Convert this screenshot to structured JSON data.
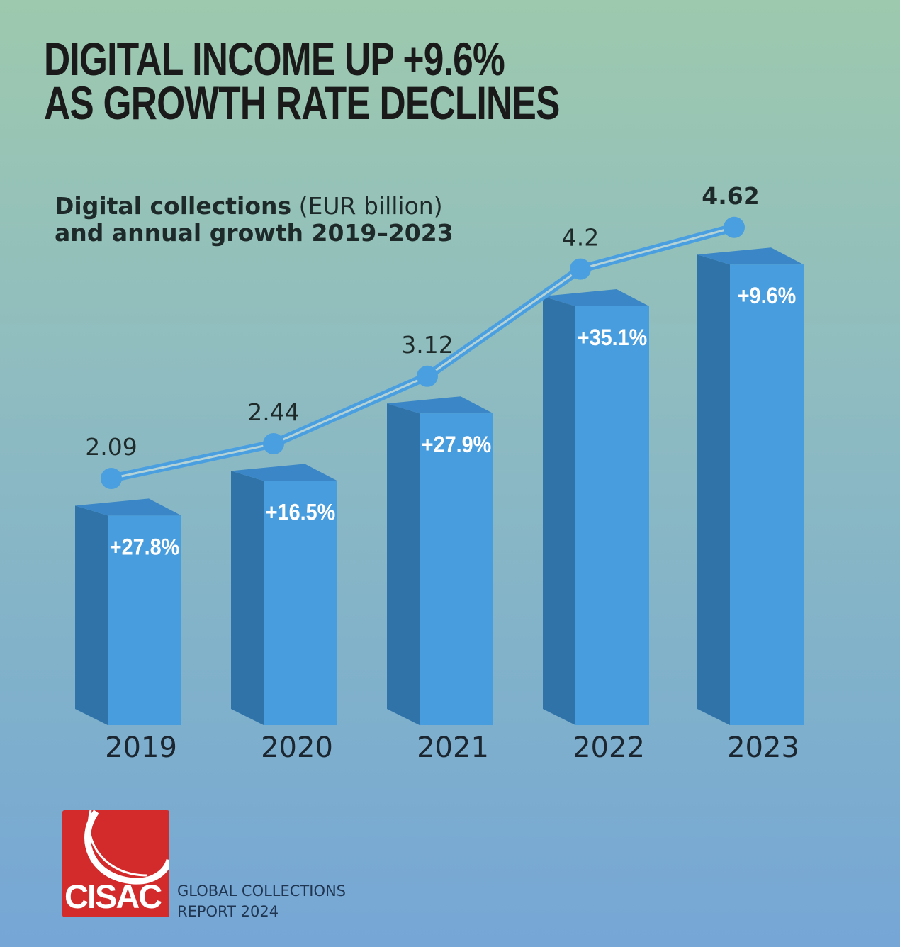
{
  "title": {
    "line1": "DIGITAL INCOME UP +9.6%",
    "line2": "AS GROWTH RATE DECLINES"
  },
  "subtitle": {
    "bold1": "Digital collections",
    "normal": " (EUR billion)",
    "bold2": "and annual growth 2019–2023"
  },
  "chart_data": {
    "type": "bar",
    "categories": [
      "2019",
      "2020",
      "2021",
      "2022",
      "2023"
    ],
    "values": [
      2.09,
      2.44,
      3.12,
      4.2,
      4.62
    ],
    "value_labels": [
      "2.09",
      "2.44",
      "3.12",
      "4.2",
      "4.62"
    ],
    "growth_labels": [
      "+27.8%",
      "+16.5%",
      "+27.9%",
      "+35.1%",
      "+9.6%"
    ],
    "overlay": "line with markers over bars",
    "colors": {
      "bar_front": "#479ddd",
      "bar_side": "#2f73a8",
      "bar_top": "#3a86c6",
      "line": "#4a9fe0"
    },
    "xlabel": "",
    "ylabel": "",
    "grid": false
  },
  "footer": {
    "logo": "CISAC",
    "report_line1": "GLOBAL COLLECTIONS",
    "report_line2": "REPORT 2024"
  }
}
